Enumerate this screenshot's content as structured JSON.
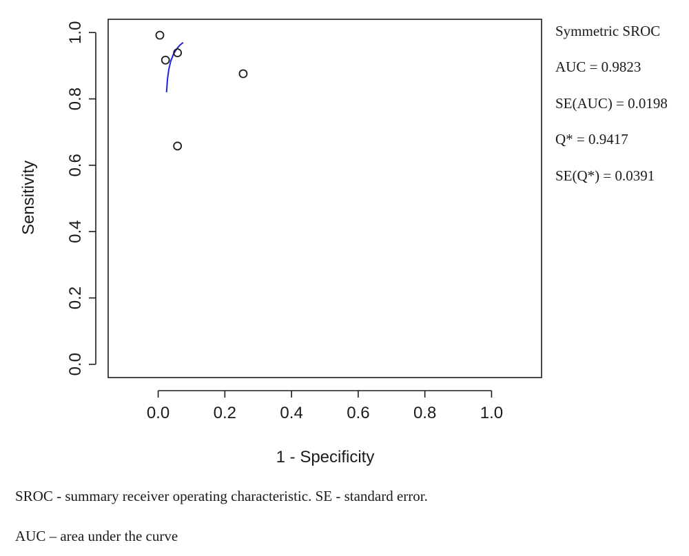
{
  "chart_data": {
    "type": "scatter",
    "xlabel": "1 - Specificity",
    "ylabel": "Sensitivity",
    "xlim": [
      -0.15,
      1.15
    ],
    "ylim": [
      -0.04,
      1.04
    ],
    "x_ticks": [
      "0.0",
      "0.2",
      "0.4",
      "0.6",
      "0.8",
      "1.0"
    ],
    "y_ticks": [
      "0.0",
      "0.2",
      "0.4",
      "0.6",
      "0.8",
      "1.0"
    ],
    "points": [
      {
        "x": 0.005,
        "y": 0.992
      },
      {
        "x": 0.022,
        "y": 0.917
      },
      {
        "x": 0.058,
        "y": 0.939
      },
      {
        "x": 0.255,
        "y": 0.876
      },
      {
        "x": 0.058,
        "y": 0.658
      }
    ],
    "curve": {
      "color": "#2020dd",
      "points": [
        {
          "x": 0.025,
          "y": 0.82
        },
        {
          "x": 0.028,
          "y": 0.86
        },
        {
          "x": 0.032,
          "y": 0.89
        },
        {
          "x": 0.038,
          "y": 0.915
        },
        {
          "x": 0.046,
          "y": 0.935
        },
        {
          "x": 0.055,
          "y": 0.95
        },
        {
          "x": 0.065,
          "y": 0.962
        },
        {
          "x": 0.075,
          "y": 0.97
        }
      ]
    },
    "point_color": "#1a1a1a",
    "grid": false,
    "legend_placement": "right",
    "annotations": [
      "Symmetric SROC",
      "AUC = 0.9823",
      "SE(AUC) = 0.0198",
      "Q* = 0.9417",
      "SE(Q*) = 0.0391"
    ]
  },
  "footnotes": [
    "SROC - summary receiver operating characteristic. SE - standard error.",
    "AUC – area under the curve"
  ]
}
